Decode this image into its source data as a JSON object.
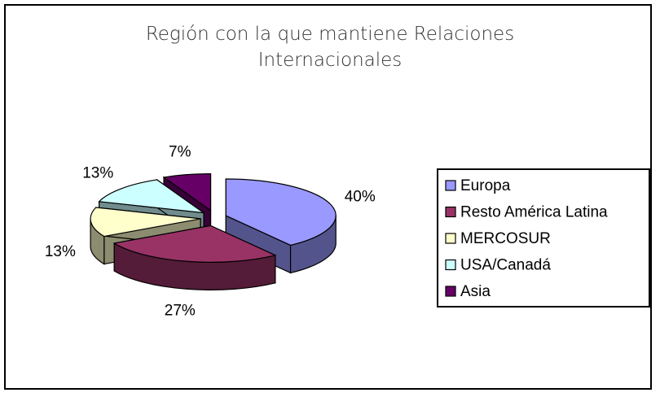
{
  "chart_data": {
    "type": "pie3d",
    "title": "Región con la que mantiene Relaciones Internacionales",
    "categories": [
      "Europa",
      "Resto América Latina",
      "MERCOSUR",
      "USA/Canadá",
      "Asia"
    ],
    "values": [
      40,
      27,
      13,
      13,
      7
    ],
    "value_labels": [
      "40%",
      "27%",
      "13%",
      "13%",
      "7%"
    ],
    "colors": [
      "#9999ff",
      "#993366",
      "#ffffcc",
      "#ccffff",
      "#660066"
    ],
    "legend": "right"
  }
}
